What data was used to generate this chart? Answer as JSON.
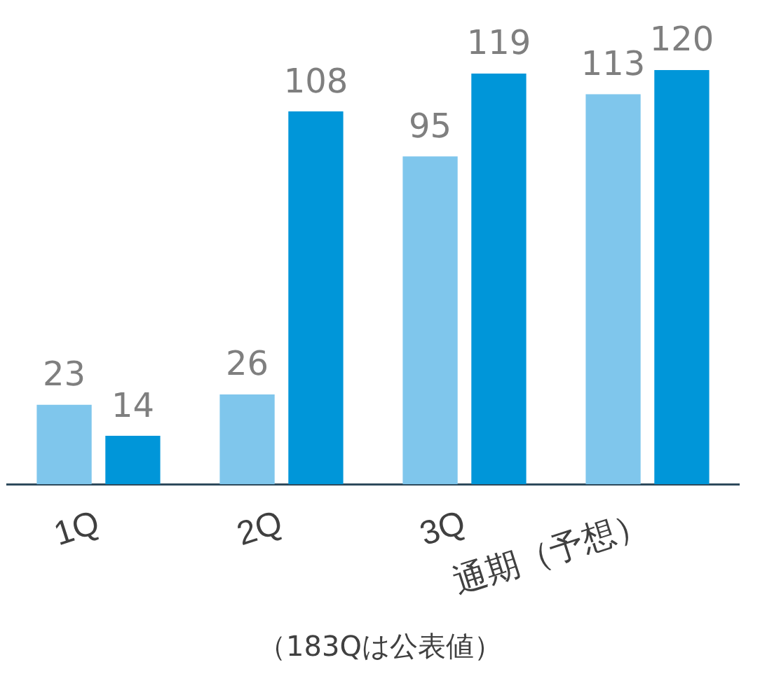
{
  "chart_data": {
    "type": "bar",
    "categories": [
      "1Q",
      "2Q",
      "3Q",
      "通期（予想）"
    ],
    "series": [
      {
        "color": "#7fc6ec",
        "values": [
          23,
          26,
          95,
          113
        ]
      },
      {
        "color": "#0096d9",
        "values": [
          14,
          108,
          119,
          120
        ]
      }
    ],
    "data_labels": true,
    "grid": false,
    "legend": false,
    "annotations": [
      "（183Qは公表値）"
    ]
  }
}
